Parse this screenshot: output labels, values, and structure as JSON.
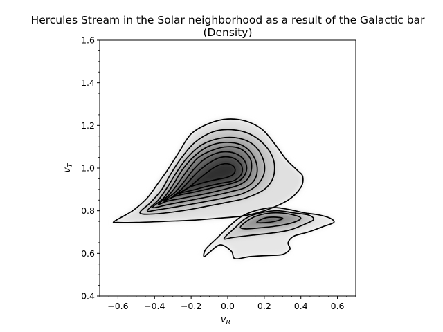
{
  "chart_data": {
    "type": "contour",
    "title_line1": "Hercules Stream in the Solar neighborhood as a result of the Galactic bar",
    "title_line2": "(Density)",
    "xlabel_main": "v",
    "xlabel_sub": "R",
    "ylabel_main": "v",
    "ylabel_sub": "T",
    "xlim": [
      -0.7,
      0.7
    ],
    "ylim": [
      0.4,
      1.6
    ],
    "xticks": [
      -0.6,
      -0.4,
      -0.2,
      0.0,
      0.2,
      0.4,
      0.6
    ],
    "xtick_labels": [
      "−0.6",
      "−0.4",
      "−0.2",
      "0.0",
      "0.2",
      "0.4",
      "0.6"
    ],
    "yticks": [
      0.4,
      0.6,
      0.8,
      1.0,
      1.2,
      1.4,
      1.6
    ],
    "ytick_labels": [
      "0.4",
      "0.6",
      "0.8",
      "1.0",
      "1.2",
      "1.4",
      "1.6"
    ],
    "colormap": "gray_r",
    "contour_color": "#000000",
    "main_mode": {
      "peak": [
        -0.1,
        0.96
      ],
      "levels": [
        {
          "fill": 0.12,
          "points": [
            [
              -0.62,
              0.75
            ],
            [
              -0.52,
              0.8
            ],
            [
              -0.44,
              0.86
            ],
            [
              -0.38,
              0.93
            ],
            [
              -0.33,
              0.99
            ],
            [
              -0.27,
              1.07
            ],
            [
              -0.2,
              1.16
            ],
            [
              -0.1,
              1.21
            ],
            [
              0.0,
              1.23
            ],
            [
              0.1,
              1.22
            ],
            [
              0.19,
              1.18
            ],
            [
              0.26,
              1.11
            ],
            [
              0.32,
              1.04
            ],
            [
              0.38,
              0.99
            ],
            [
              0.41,
              0.96
            ],
            [
              0.4,
              0.91
            ],
            [
              0.33,
              0.85
            ],
            [
              0.2,
              0.8
            ],
            [
              0.08,
              0.775
            ],
            [
              -0.05,
              0.765
            ],
            [
              -0.2,
              0.755
            ],
            [
              -0.35,
              0.75
            ],
            [
              -0.5,
              0.745
            ],
            [
              -0.6,
              0.745
            ]
          ]
        },
        {
          "fill": 0.22,
          "points": [
            [
              -0.48,
              0.79
            ],
            [
              -0.42,
              0.84
            ],
            [
              -0.36,
              0.9
            ],
            [
              -0.32,
              0.96
            ],
            [
              -0.26,
              1.04
            ],
            [
              -0.18,
              1.12
            ],
            [
              -0.08,
              1.17
            ],
            [
              0.02,
              1.18
            ],
            [
              0.12,
              1.16
            ],
            [
              0.2,
              1.11
            ],
            [
              0.25,
              1.04
            ],
            [
              0.25,
              0.96
            ],
            [
              0.2,
              0.9
            ],
            [
              0.1,
              0.86
            ],
            [
              0.0,
              0.84
            ],
            [
              -0.12,
              0.82
            ],
            [
              -0.25,
              0.8
            ],
            [
              -0.4,
              0.785
            ]
          ]
        },
        {
          "fill": 0.32,
          "points": [
            [
              -0.44,
              0.8
            ],
            [
              -0.38,
              0.85
            ],
            [
              -0.33,
              0.91
            ],
            [
              -0.28,
              0.98
            ],
            [
              -0.22,
              1.05
            ],
            [
              -0.14,
              1.11
            ],
            [
              -0.04,
              1.14
            ],
            [
              0.06,
              1.14
            ],
            [
              0.14,
              1.11
            ],
            [
              0.19,
              1.05
            ],
            [
              0.2,
              0.98
            ],
            [
              0.16,
              0.92
            ],
            [
              0.08,
              0.88
            ],
            [
              -0.02,
              0.86
            ],
            [
              -0.14,
              0.84
            ],
            [
              -0.27,
              0.82
            ],
            [
              -0.38,
              0.805
            ]
          ]
        },
        {
          "fill": 0.42,
          "points": [
            [
              -0.41,
              0.815
            ],
            [
              -0.35,
              0.86
            ],
            [
              -0.3,
              0.92
            ],
            [
              -0.25,
              0.99
            ],
            [
              -0.19,
              1.05
            ],
            [
              -0.11,
              1.1
            ],
            [
              -0.02,
              1.12
            ],
            [
              0.07,
              1.11
            ],
            [
              0.13,
              1.07
            ],
            [
              0.16,
              1.01
            ],
            [
              0.15,
              0.95
            ],
            [
              0.1,
              0.91
            ],
            [
              0.02,
              0.89
            ],
            [
              -0.08,
              0.87
            ],
            [
              -0.2,
              0.85
            ],
            [
              -0.32,
              0.83
            ]
          ]
        },
        {
          "fill": 0.52,
          "points": [
            [
              -0.38,
              0.83
            ],
            [
              -0.32,
              0.875
            ],
            [
              -0.27,
              0.93
            ],
            [
              -0.22,
              0.99
            ],
            [
              -0.16,
              1.05
            ],
            [
              -0.08,
              1.085
            ],
            [
              0.0,
              1.1
            ],
            [
              0.07,
              1.09
            ],
            [
              0.12,
              1.05
            ],
            [
              0.13,
              1.0
            ],
            [
              0.11,
              0.95
            ],
            [
              0.06,
              0.92
            ],
            [
              -0.02,
              0.9
            ],
            [
              -0.12,
              0.88
            ],
            [
              -0.24,
              0.86
            ],
            [
              -0.33,
              0.845
            ]
          ]
        },
        {
          "fill": 0.62,
          "points": [
            [
              -0.35,
              0.845
            ],
            [
              -0.29,
              0.885
            ],
            [
              -0.24,
              0.935
            ],
            [
              -0.19,
              0.99
            ],
            [
              -0.13,
              1.04
            ],
            [
              -0.06,
              1.07
            ],
            [
              0.01,
              1.075
            ],
            [
              0.07,
              1.055
            ],
            [
              0.1,
              1.02
            ],
            [
              0.1,
              0.98
            ],
            [
              0.07,
              0.945
            ],
            [
              0.01,
              0.925
            ],
            [
              -0.07,
              0.91
            ],
            [
              -0.17,
              0.89
            ],
            [
              -0.28,
              0.87
            ]
          ]
        },
        {
          "fill": 0.72,
          "points": [
            [
              -0.31,
              0.86
            ],
            [
              -0.26,
              0.895
            ],
            [
              -0.21,
              0.94
            ],
            [
              -0.16,
              0.985
            ],
            [
              -0.1,
              1.025
            ],
            [
              -0.04,
              1.05
            ],
            [
              0.02,
              1.05
            ],
            [
              0.06,
              1.03
            ],
            [
              0.08,
              1.0
            ],
            [
              0.07,
              0.965
            ],
            [
              0.03,
              0.94
            ],
            [
              -0.03,
              0.93
            ],
            [
              -0.11,
              0.915
            ],
            [
              -0.2,
              0.895
            ],
            [
              -0.27,
              0.88
            ]
          ]
        },
        {
          "fill": 0.82,
          "points": [
            [
              -0.27,
              0.88
            ],
            [
              -0.22,
              0.905
            ],
            [
              -0.17,
              0.94
            ],
            [
              -0.12,
              0.975
            ],
            [
              -0.07,
              1.005
            ],
            [
              -0.02,
              1.02
            ],
            [
              0.02,
              1.015
            ],
            [
              0.04,
              0.995
            ],
            [
              0.03,
              0.97
            ],
            [
              -0.01,
              0.955
            ],
            [
              -0.07,
              0.945
            ],
            [
              -0.14,
              0.93
            ],
            [
              -0.21,
              0.91
            ]
          ]
        }
      ]
    },
    "hercules_mode": {
      "peak": [
        0.24,
        0.76
      ],
      "levels": [
        {
          "fill": 0.1,
          "points": [
            [
              -0.12,
              0.62
            ],
            [
              -0.06,
              0.67
            ],
            [
              0.0,
              0.72
            ],
            [
              0.07,
              0.77
            ],
            [
              0.15,
              0.8
            ],
            [
              0.25,
              0.815
            ],
            [
              0.34,
              0.805
            ],
            [
              0.42,
              0.79
            ],
            [
              0.5,
              0.78
            ],
            [
              0.56,
              0.765
            ],
            [
              0.58,
              0.745
            ],
            [
              0.52,
              0.725
            ],
            [
              0.44,
              0.7
            ],
            [
              0.36,
              0.68
            ],
            [
              0.33,
              0.65
            ],
            [
              0.34,
              0.62
            ],
            [
              0.3,
              0.595
            ],
            [
              0.22,
              0.59
            ],
            [
              0.12,
              0.585
            ],
            [
              0.04,
              0.575
            ],
            [
              0.02,
              0.61
            ],
            [
              -0.04,
              0.64
            ],
            [
              -0.1,
              0.605
            ],
            [
              -0.13,
              0.585
            ]
          ]
        },
        {
          "fill": 0.22,
          "points": [
            [
              -0.02,
              0.67
            ],
            [
              0.04,
              0.72
            ],
            [
              0.1,
              0.765
            ],
            [
              0.18,
              0.79
            ],
            [
              0.27,
              0.8
            ],
            [
              0.36,
              0.79
            ],
            [
              0.44,
              0.78
            ],
            [
              0.47,
              0.76
            ],
            [
              0.43,
              0.74
            ],
            [
              0.34,
              0.71
            ],
            [
              0.24,
              0.695
            ],
            [
              0.13,
              0.685
            ],
            [
              0.03,
              0.675
            ]
          ]
        },
        {
          "fill": 0.42,
          "points": [
            [
              0.07,
              0.725
            ],
            [
              0.13,
              0.765
            ],
            [
              0.2,
              0.785
            ],
            [
              0.28,
              0.79
            ],
            [
              0.36,
              0.78
            ],
            [
              0.4,
              0.765
            ],
            [
              0.36,
              0.745
            ],
            [
              0.28,
              0.73
            ],
            [
              0.18,
              0.72
            ],
            [
              0.1,
              0.715
            ]
          ]
        },
        {
          "fill": 0.62,
          "points": [
            [
              0.16,
              0.745
            ],
            [
              0.2,
              0.765
            ],
            [
              0.25,
              0.77
            ],
            [
              0.3,
              0.765
            ],
            [
              0.28,
              0.755
            ],
            [
              0.22,
              0.745
            ]
          ]
        }
      ]
    }
  }
}
